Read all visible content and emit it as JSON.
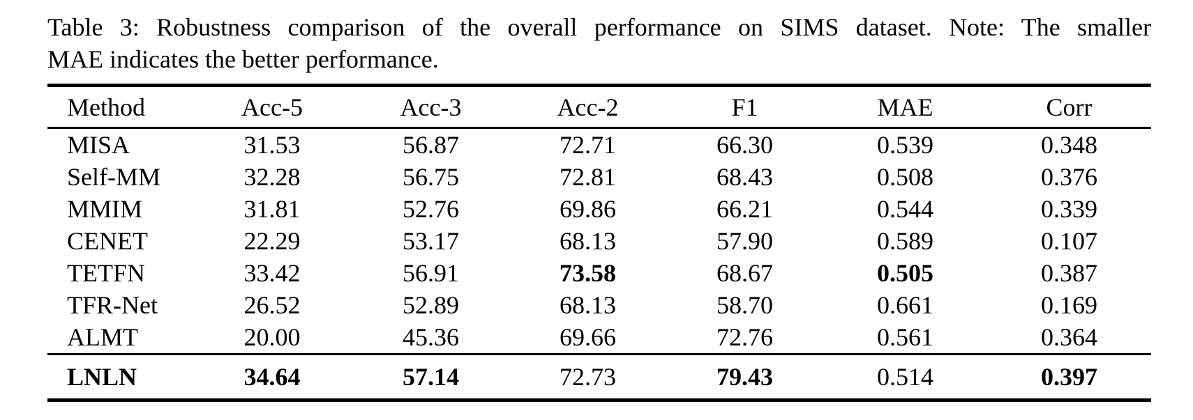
{
  "caption": {
    "line1": "Table 3: Robustness comparison of the overall performance on SIMS dataset. Note: The smaller",
    "line2": "MAE indicates the better performance."
  },
  "colors": {
    "text": "#000000",
    "background": "#ffffff",
    "rule": "#000000"
  },
  "table": {
    "columns": [
      "Method",
      "Acc-5",
      "Acc-3",
      "Acc-2",
      "F1",
      "MAE",
      "Corr"
    ],
    "rows": [
      {
        "method": "MISA",
        "method_bold": false,
        "highlight": false,
        "values": [
          "31.53",
          "56.87",
          "72.71",
          "66.30",
          "0.539",
          "0.348"
        ],
        "bold": [
          false,
          false,
          false,
          false,
          false,
          false
        ]
      },
      {
        "method": "Self-MM",
        "method_bold": false,
        "highlight": false,
        "values": [
          "32.28",
          "56.75",
          "72.81",
          "68.43",
          "0.508",
          "0.376"
        ],
        "bold": [
          false,
          false,
          false,
          false,
          false,
          false
        ]
      },
      {
        "method": "MMIM",
        "method_bold": false,
        "highlight": false,
        "values": [
          "31.81",
          "52.76",
          "69.86",
          "66.21",
          "0.544",
          "0.339"
        ],
        "bold": [
          false,
          false,
          false,
          false,
          false,
          false
        ]
      },
      {
        "method": "CENET",
        "method_bold": false,
        "highlight": false,
        "values": [
          "22.29",
          "53.17",
          "68.13",
          "57.90",
          "0.589",
          "0.107"
        ],
        "bold": [
          false,
          false,
          false,
          false,
          false,
          false
        ]
      },
      {
        "method": "TETFN",
        "method_bold": false,
        "highlight": false,
        "values": [
          "33.42",
          "56.91",
          "73.58",
          "68.67",
          "0.505",
          "0.387"
        ],
        "bold": [
          false,
          false,
          true,
          false,
          true,
          false
        ]
      },
      {
        "method": "TFR-Net",
        "method_bold": false,
        "highlight": false,
        "values": [
          "26.52",
          "52.89",
          "68.13",
          "58.70",
          "0.661",
          "0.169"
        ],
        "bold": [
          false,
          false,
          false,
          false,
          false,
          false
        ]
      },
      {
        "method": "ALMT",
        "method_bold": false,
        "highlight": false,
        "values": [
          "20.00",
          "45.36",
          "69.66",
          "72.76",
          "0.561",
          "0.364"
        ],
        "bold": [
          false,
          false,
          false,
          false,
          false,
          false
        ]
      },
      {
        "method": "LNLN",
        "method_bold": true,
        "highlight": true,
        "values": [
          "34.64",
          "57.14",
          "72.73",
          "79.43",
          "0.514",
          "0.397"
        ],
        "bold": [
          true,
          true,
          false,
          true,
          false,
          true
        ]
      }
    ]
  }
}
